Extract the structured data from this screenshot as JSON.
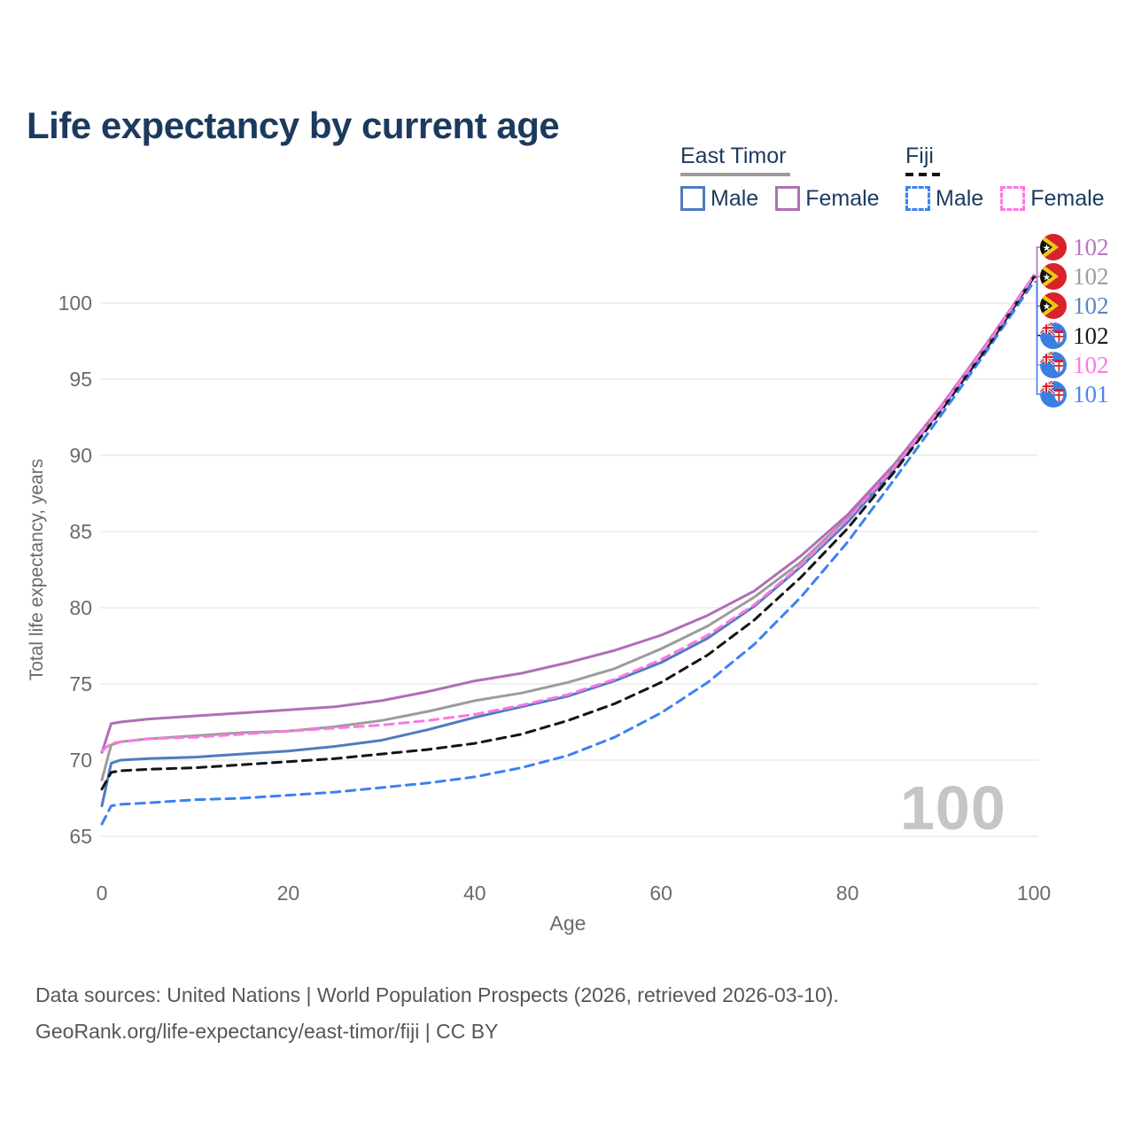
{
  "title": "Life expectancy by current age",
  "watermark": "100",
  "legend": {
    "position": "top-right",
    "groups": [
      {
        "label": "East Timor",
        "line_style": "solid",
        "underline_color": "#9c9c9c",
        "items": [
          {
            "label": "Male",
            "color": "#4e7bc0",
            "dashed": false
          },
          {
            "label": "Female",
            "color": "#b06eb6",
            "dashed": false
          }
        ]
      },
      {
        "label": "Fiji",
        "line_style": "dashed",
        "underline_color": "#141414",
        "items": [
          {
            "label": "Male",
            "color": "#3b82f0",
            "dashed": true
          },
          {
            "label": "Female",
            "color": "#fc77e2",
            "dashed": true
          }
        ]
      }
    ]
  },
  "footer": {
    "line1": "Data sources: United Nations | World Population Prospects (2026, retrieved 2026-03-10).",
    "line2": "GeoRank.org/life-expectancy/east-timor/fiji | CC BY"
  },
  "chart_data": {
    "type": "line",
    "title": "Life expectancy by current age",
    "xlabel": "Age",
    "ylabel": "Total life expectancy, years",
    "xlim": [
      0,
      100
    ],
    "ylim": [
      65,
      103
    ],
    "xticks": [
      0,
      20,
      40,
      60,
      80,
      100
    ],
    "yticks": [
      65,
      70,
      75,
      80,
      85,
      90,
      95,
      100
    ],
    "grid": "horizontal",
    "gridline_color": "#ececec",
    "tick_color": "#6b6b6b",
    "x": [
      0,
      1,
      2,
      5,
      10,
      15,
      20,
      25,
      30,
      35,
      40,
      45,
      50,
      55,
      60,
      65,
      70,
      75,
      80,
      85,
      90,
      95,
      100
    ],
    "series": [
      {
        "name": "East Timor Female",
        "country": "east-timor",
        "sex": "female",
        "color": "#b06eb6",
        "dashed": false,
        "end_label": "102",
        "label_color": "#b878c2",
        "values": [
          70.5,
          72.4,
          72.5,
          72.7,
          72.9,
          73.1,
          73.3,
          73.5,
          73.9,
          74.5,
          75.2,
          75.7,
          76.4,
          77.2,
          78.2,
          79.5,
          81.1,
          83.4,
          86.1,
          89.4,
          93.2,
          97.4,
          101.8
        ]
      },
      {
        "name": "East Timor (all)",
        "country": "east-timor",
        "sex": "all",
        "color": "#9c9c9c",
        "dashed": false,
        "end_label": "102",
        "label_color": "#9c9c9c",
        "values": [
          68.7,
          71.0,
          71.2,
          71.4,
          71.6,
          71.8,
          71.9,
          72.2,
          72.6,
          73.2,
          73.9,
          74.4,
          75.1,
          76.0,
          77.3,
          78.8,
          80.7,
          83.0,
          85.9,
          89.3,
          93.1,
          97.3,
          101.8
        ]
      },
      {
        "name": "East Timor Male",
        "country": "east-timor",
        "sex": "male",
        "color": "#4e7bc0",
        "dashed": false,
        "end_label": "102",
        "label_color": "#5b84c4",
        "values": [
          67.0,
          69.8,
          70.0,
          70.1,
          70.2,
          70.4,
          70.6,
          70.9,
          71.3,
          72.0,
          72.8,
          73.5,
          74.2,
          75.2,
          76.4,
          78.0,
          80.1,
          82.7,
          85.6,
          89.1,
          93.0,
          97.2,
          101.7
        ]
      },
      {
        "name": "Fiji (all)",
        "country": "fiji",
        "sex": "all",
        "color": "#141414",
        "dashed": true,
        "end_label": "102",
        "label_color": "#1a1a1a",
        "values": [
          68.1,
          69.2,
          69.3,
          69.4,
          69.5,
          69.7,
          69.9,
          70.1,
          70.4,
          70.7,
          71.1,
          71.7,
          72.6,
          73.7,
          75.1,
          76.9,
          79.2,
          82.0,
          85.2,
          88.9,
          92.9,
          97.1,
          101.7
        ]
      },
      {
        "name": "Fiji Female",
        "country": "fiji",
        "sex": "female",
        "color": "#fc77e2",
        "dashed": true,
        "end_label": "102",
        "label_color": "#fc77e2",
        "values": [
          70.6,
          71.1,
          71.2,
          71.4,
          71.5,
          71.7,
          71.9,
          72.1,
          72.3,
          72.6,
          73.0,
          73.6,
          74.3,
          75.3,
          76.6,
          78.2,
          80.2,
          82.8,
          85.8,
          89.2,
          93.1,
          97.3,
          101.8
        ]
      },
      {
        "name": "Fiji Male",
        "country": "fiji",
        "sex": "male",
        "color": "#3b82f0",
        "dashed": true,
        "end_label": "101",
        "label_color": "#4b87e8",
        "values": [
          65.8,
          67.0,
          67.1,
          67.2,
          67.4,
          67.5,
          67.7,
          67.9,
          68.2,
          68.5,
          68.9,
          69.5,
          70.3,
          71.5,
          73.1,
          75.1,
          77.6,
          80.7,
          84.3,
          88.4,
          92.6,
          96.9,
          101.4
        ]
      }
    ]
  }
}
